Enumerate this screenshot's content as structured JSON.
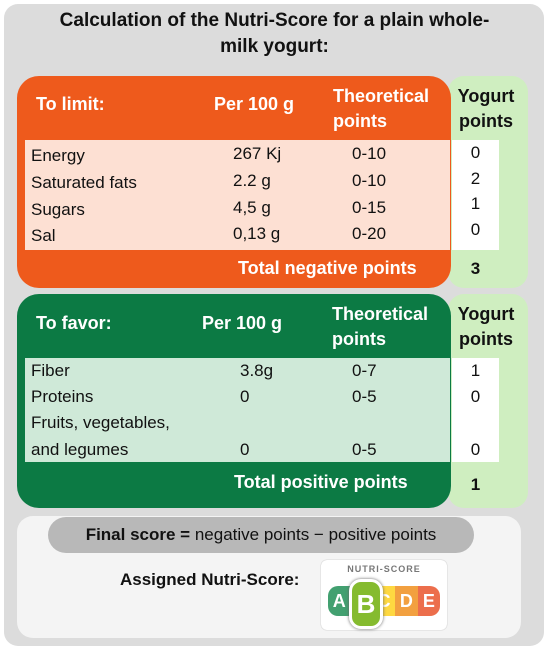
{
  "title_lines": [
    "Calculation of the Nutri-Score for a plain whole-",
    "milk yogurt:"
  ],
  "negative": {
    "section_label": "To limit:",
    "col_per100": "Per 100 g",
    "col_theoretical": [
      "Theoretical",
      "points"
    ],
    "col_yogurt": [
      "Yogurt",
      "points"
    ],
    "rows": [
      {
        "name": "Energy",
        "amount": "267 Kj",
        "range": "0-10",
        "points": "0"
      },
      {
        "name": "Saturated fats",
        "amount": "2.2 g",
        "range": "0-10",
        "points": "2"
      },
      {
        "name": "Sugars",
        "amount": "4,5 g",
        "range": "0-15",
        "points": "1"
      },
      {
        "name": "Sal",
        "amount": "0,13 g",
        "range": "0-20",
        "points": "0"
      }
    ],
    "total_label": "Total negative points",
    "total_value": "3"
  },
  "positive": {
    "section_label": "To favor:",
    "col_per100": "Per 100 g",
    "col_theoretical": [
      "Theoretical",
      "points"
    ],
    "col_yogurt": [
      "Yogurt",
      "points"
    ],
    "rows": [
      {
        "name": [
          "Fiber"
        ],
        "amount": "3.8g",
        "range": "0-7",
        "points": "1"
      },
      {
        "name": [
          "Proteins"
        ],
        "amount": "0",
        "range": "0-5",
        "points": "0"
      },
      {
        "name": [
          "Fruits, vegetables,",
          "and legumes"
        ],
        "amount": "0",
        "range": "0-5",
        "points": "0"
      }
    ],
    "total_label": "Total positive points",
    "total_value": "1"
  },
  "final": {
    "label_bold": "Final score =",
    "label_rest": " negative points − positive points",
    "assigned_label": "Assigned Nutri-Score:"
  },
  "nutriscore": {
    "title": "NUTRI-SCORE",
    "letters": [
      "A",
      "B",
      "C",
      "D",
      "E"
    ],
    "colors": [
      "#038141",
      "#85bb2f",
      "#fecb02",
      "#ee8100",
      "#e63e11"
    ],
    "selected": "B"
  }
}
